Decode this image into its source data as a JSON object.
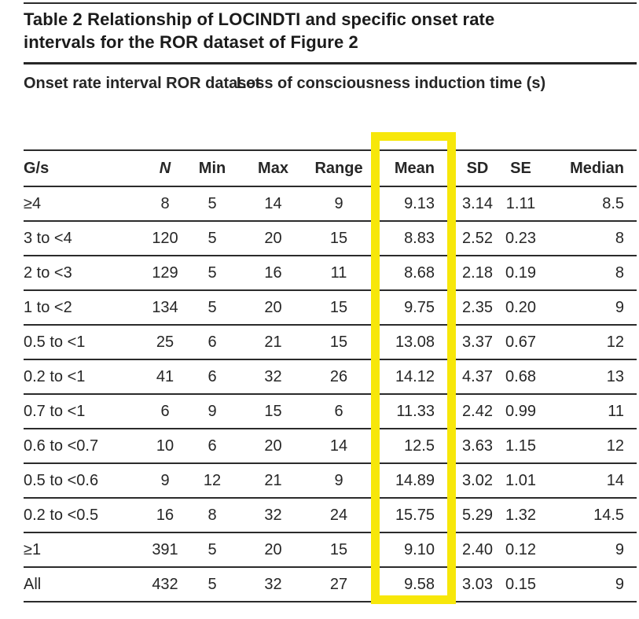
{
  "title": {
    "line1": "Table 2 Relationship of LOCINDTI and specific onset rate",
    "line2": "intervals for the ROR dataset of Figure 2"
  },
  "table": {
    "stub_header": "Onset rate interval ROR dataset",
    "span_header": "Loss of consciousness induction time (s)",
    "columns": [
      "G/s",
      "N",
      "Min",
      "Max",
      "Range",
      "Mean",
      "SD",
      "SE",
      "Median"
    ],
    "rows": [
      [
        "≥4",
        "8",
        "5",
        "14",
        "9",
        "9.13",
        "3.14",
        "1.11",
        "8.5"
      ],
      [
        "3 to <4",
        "120",
        "5",
        "20",
        "15",
        "8.83",
        "2.52",
        "0.23",
        "8"
      ],
      [
        "2 to <3",
        "129",
        "5",
        "16",
        "11",
        "8.68",
        "2.18",
        "0.19",
        "8"
      ],
      [
        "1 to <2",
        "134",
        "5",
        "20",
        "15",
        "9.75",
        "2.35",
        "0.20",
        "9"
      ],
      [
        "0.5 to <1",
        "25",
        "6",
        "21",
        "15",
        "13.08",
        "3.37",
        "0.67",
        "12"
      ],
      [
        "0.2 to <1",
        "41",
        "6",
        "32",
        "26",
        "14.12",
        "4.37",
        "0.68",
        "13"
      ],
      [
        "0.7 to <1",
        "6",
        "9",
        "15",
        "6",
        "11.33",
        "2.42",
        "0.99",
        "11"
      ],
      [
        "0.6 to <0.7",
        "10",
        "6",
        "20",
        "14",
        "12.5",
        "3.63",
        "1.15",
        "12"
      ],
      [
        "0.5 to <0.6",
        "9",
        "12",
        "21",
        "9",
        "14.89",
        "3.02",
        "1.01",
        "14"
      ],
      [
        "0.2 to <0.5",
        "16",
        "8",
        "32",
        "24",
        "15.75",
        "5.29",
        "1.32",
        "14.5"
      ],
      [
        "≥1",
        "391",
        "5",
        "20",
        "15",
        "9.10",
        "2.40",
        "0.12",
        "9"
      ],
      [
        "All",
        "432",
        "5",
        "32",
        "27",
        "9.58",
        "3.03",
        "0.15",
        "9"
      ]
    ]
  },
  "highlight": {
    "column": "Mean",
    "color": "#f7e70a"
  },
  "colors": {
    "background": "#ffffff",
    "text": "#1f1f1f",
    "rule": "#2b2b2b",
    "highlight": "#f7e70a"
  }
}
